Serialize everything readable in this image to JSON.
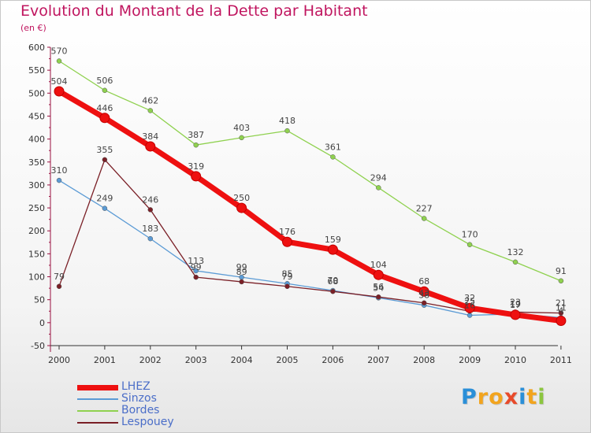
{
  "title": "Evolution du Montant de la Dette par Habitant",
  "unit_label": "(en €)",
  "logo": {
    "letters": [
      "P",
      "r",
      "o",
      "x",
      "i",
      "t",
      "i"
    ],
    "colors": [
      "#2a8fd8",
      "#f2a41e",
      "#f2a41e",
      "#e84a2a",
      "#2a8fd8",
      "#f2a41e",
      "#8cc63f"
    ]
  },
  "chart_data": {
    "type": "line",
    "title": "Evolution du Montant de la Dette par Habitant",
    "xlabel": "",
    "ylabel": "(en €)",
    "ylim": [
      -50,
      600
    ],
    "yticks": [
      -50,
      0,
      50,
      100,
      150,
      200,
      250,
      300,
      350,
      400,
      450,
      500,
      550,
      600
    ],
    "x": [
      "2000",
      "2001",
      "2002",
      "2003",
      "2004",
      "2005",
      "2006",
      "2007",
      "2008",
      "2009",
      "2010",
      "2011"
    ],
    "grid": false,
    "legend_position": "bottom-left",
    "series": [
      {
        "name": "LHEZ",
        "color": "#ee1010",
        "values": [
          504,
          446,
          384,
          319,
          250,
          176,
          159,
          104,
          68,
          32,
          17,
          4
        ]
      },
      {
        "name": "Sinzos",
        "color": "#5b9bd5",
        "values": [
          310,
          249,
          183,
          113,
          99,
          85,
          70,
          54,
          38,
          16,
          19,
          11
        ]
      },
      {
        "name": "Bordes",
        "color": "#8fd14f",
        "values": [
          570,
          506,
          462,
          387,
          403,
          418,
          361,
          294,
          227,
          170,
          132,
          91
        ]
      },
      {
        "name": "Lespouey",
        "color": "#7a1f26",
        "values": [
          79,
          355,
          246,
          99,
          89,
          79,
          68,
          56,
          43,
          25,
          23,
          21
        ]
      }
    ]
  }
}
